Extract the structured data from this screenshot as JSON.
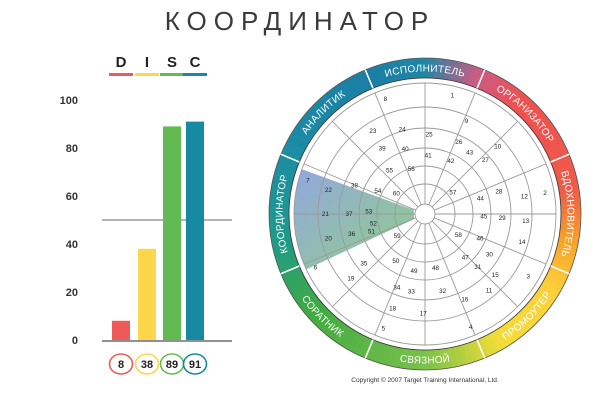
{
  "title": "КООРДИНАТОР",
  "chart_data": [
    {
      "type": "bar",
      "categories": [
        "D",
        "I",
        "S",
        "C"
      ],
      "values": [
        8,
        38,
        89,
        91
      ],
      "value_labels": [
        "8",
        "38",
        "89",
        "91"
      ],
      "ylim": [
        0,
        100
      ],
      "yticks": [
        0,
        20,
        40,
        60,
        80,
        100
      ],
      "reference_line": 50,
      "colors": [
        "#ee5a5a",
        "#fdd64b",
        "#62bb52",
        "#1689a3"
      ]
    },
    {
      "type": "other",
      "description_type": "disc-wheel",
      "segments": [
        {
          "label": "ИСПОЛНИТЕЛЬ",
          "color": "#1689a3"
        },
        {
          "label": "ОРГАНИЗАТОР",
          "color": "#ee5a5a"
        },
        {
          "label": "ВДОХНОВИТЕЛЬ",
          "color": "#ee5a5a"
        },
        {
          "label": "ПРОМОУТЕР",
          "color": "#fdd64b"
        },
        {
          "label": "СВЯЗНОЙ",
          "color": "#62bb52"
        },
        {
          "label": "СОРАТНИК",
          "color": "#62bb52"
        },
        {
          "label": "КООРДИНАТОР",
          "color": "#1689a3"
        },
        {
          "label": "АНАЛИТИК",
          "color": "#1689a3"
        }
      ],
      "numbers": [
        {
          "n": "1",
          "a": 13,
          "r": 0.93
        },
        {
          "n": "2",
          "a": 80,
          "r": 0.93
        },
        {
          "n": "3",
          "a": 121,
          "r": 0.92
        },
        {
          "n": "4",
          "a": 158,
          "r": 0.93
        },
        {
          "n": "5",
          "a": 200,
          "r": 0.93
        },
        {
          "n": "6",
          "a": 244,
          "r": 0.93
        },
        {
          "n": "7",
          "a": 286,
          "r": 0.93
        },
        {
          "n": "8",
          "a": 341,
          "r": 0.93
        },
        {
          "n": "9",
          "a": 24,
          "r": 0.78
        },
        {
          "n": "10",
          "a": 47,
          "r": 0.76
        },
        {
          "n": "11",
          "a": 140,
          "r": 0.76
        },
        {
          "n": "12",
          "a": 80,
          "r": 0.77
        },
        {
          "n": "13",
          "a": 94,
          "r": 0.77
        },
        {
          "n": "14",
          "a": 106,
          "r": 0.77
        },
        {
          "n": "15",
          "a": 131,
          "r": 0.71
        },
        {
          "n": "16",
          "a": 155,
          "r": 0.72
        },
        {
          "n": "17",
          "a": 181,
          "r": 0.76
        },
        {
          "n": "18",
          "a": 199,
          "r": 0.76
        },
        {
          "n": "19",
          "a": 229,
          "r": 0.75
        },
        {
          "n": "20",
          "a": 256,
          "r": 0.76
        },
        {
          "n": "21",
          "a": 270,
          "r": 0.76
        },
        {
          "n": "22",
          "a": 284,
          "r": 0.76
        },
        {
          "n": "23",
          "a": 328,
          "r": 0.75
        },
        {
          "n": "24",
          "a": 345,
          "r": 0.67
        },
        {
          "n": "25",
          "a": 3,
          "r": 0.61
        },
        {
          "n": "26",
          "a": 25,
          "r": 0.61
        },
        {
          "n": "27",
          "a": 48,
          "r": 0.62
        },
        {
          "n": "28",
          "a": 73,
          "r": 0.59
        },
        {
          "n": "29",
          "a": 93,
          "r": 0.59
        },
        {
          "n": "30",
          "a": 122,
          "r": 0.58
        },
        {
          "n": "31",
          "a": 135,
          "r": 0.57
        },
        {
          "n": "32",
          "a": 167,
          "r": 0.6
        },
        {
          "n": "33",
          "a": 190,
          "r": 0.6
        },
        {
          "n": "34",
          "a": 201,
          "r": 0.6
        },
        {
          "n": "35",
          "a": 231,
          "r": 0.6
        },
        {
          "n": "36",
          "a": 255,
          "r": 0.58
        },
        {
          "n": "37",
          "a": 270,
          "r": 0.58
        },
        {
          "n": "38",
          "a": 292,
          "r": 0.58
        },
        {
          "n": "39",
          "a": 327,
          "r": 0.6
        },
        {
          "n": "40",
          "a": 343,
          "r": 0.52
        },
        {
          "n": "41",
          "a": 3,
          "r": 0.45
        },
        {
          "n": "42",
          "a": 26,
          "r": 0.45
        },
        {
          "n": "43",
          "a": 36,
          "r": 0.58
        },
        {
          "n": "44",
          "a": 74,
          "r": 0.44
        },
        {
          "n": "45",
          "a": 92,
          "r": 0.45
        },
        {
          "n": "46",
          "a": 114,
          "r": 0.46
        },
        {
          "n": "47",
          "a": 137,
          "r": 0.45
        },
        {
          "n": "48",
          "a": 169,
          "r": 0.42
        },
        {
          "n": "49",
          "a": 191,
          "r": 0.44
        },
        {
          "n": "50",
          "a": 212,
          "r": 0.42
        },
        {
          "n": "51",
          "a": 252,
          "r": 0.43
        },
        {
          "n": "52",
          "a": 260,
          "r": 0.4
        },
        {
          "n": "53",
          "a": 273,
          "r": 0.43
        },
        {
          "n": "54",
          "a": 296,
          "r": 0.4
        },
        {
          "n": "55",
          "a": 321,
          "r": 0.43
        },
        {
          "n": "56",
          "a": 343,
          "r": 0.36
        },
        {
          "n": "57",
          "a": 52,
          "r": 0.27
        },
        {
          "n": "58",
          "a": 122,
          "r": 0.3
        },
        {
          "n": "59",
          "a": 232,
          "r": 0.27
        },
        {
          "n": "60",
          "a": 306,
          "r": 0.27
        }
      ],
      "copyright": "Copyright © 2007 Target Training International, Ltd."
    }
  ]
}
